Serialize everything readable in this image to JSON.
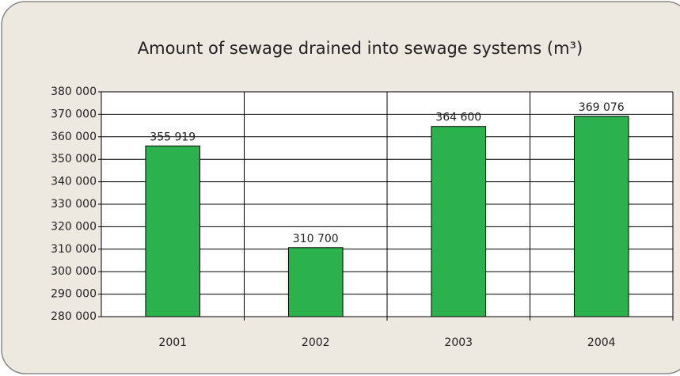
{
  "chart_data": {
    "type": "bar",
    "title": "Amount of sewage drained into sewage systems (m³)",
    "categories": [
      "2001",
      "2002",
      "2003",
      "2004"
    ],
    "values": [
      355919,
      310700,
      364600,
      369076
    ],
    "value_labels": [
      "355 919",
      "310 700",
      "364 600",
      "369 076"
    ],
    "color": "#2bb24c",
    "ylim": [
      280000,
      380000
    ],
    "yticks": [
      {
        "value": 280000,
        "label": "280 000"
      },
      {
        "value": 290000,
        "label": "290 000"
      },
      {
        "value": 300000,
        "label": "300 000"
      },
      {
        "value": 310000,
        "label": "310 000"
      },
      {
        "value": 320000,
        "label": "320 000"
      },
      {
        "value": 330000,
        "label": "330 000"
      },
      {
        "value": 340000,
        "label": "340 000"
      },
      {
        "value": 350000,
        "label": "350 000"
      },
      {
        "value": 360000,
        "label": "360 000"
      },
      {
        "value": 370000,
        "label": "370 000"
      },
      {
        "value": 380000,
        "label": "380 000"
      }
    ],
    "grid": true
  }
}
